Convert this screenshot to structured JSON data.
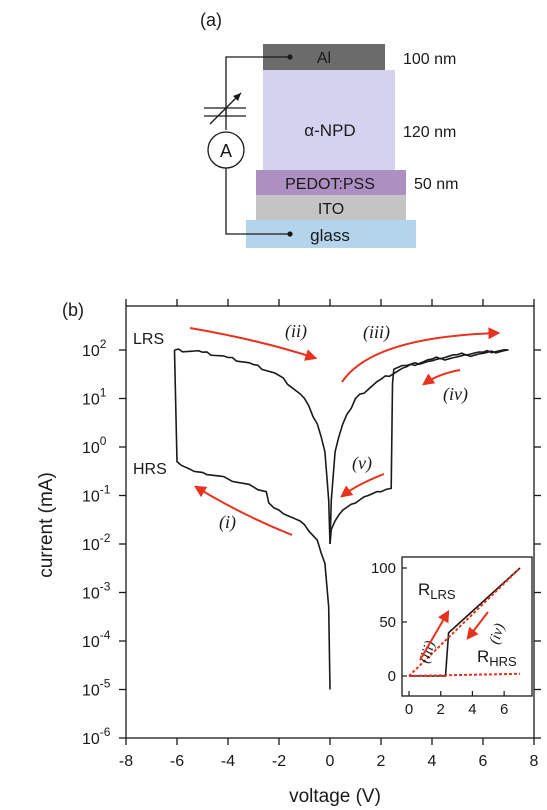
{
  "panel_a": {
    "label": "(a)",
    "layers": [
      {
        "name": "Al",
        "thickness": "100 nm",
        "color": "#6b6b6b"
      },
      {
        "name": "α-NPD",
        "thickness": "120 nm",
        "color": "#d4d2ee"
      },
      {
        "name": "PEDOT:PSS",
        "thickness": "50 nm",
        "color": "#ad8fc2"
      },
      {
        "name": "ITO",
        "thickness": "",
        "color": "#c4c4c4"
      },
      {
        "name": "glass",
        "thickness": "",
        "color": "#b3d4ea"
      }
    ],
    "ammeter_label": "A"
  },
  "panel_b": {
    "label": "(b)",
    "ylabel": "current (mA)",
    "xlabel": "voltage (V)",
    "x_ticks": [
      "-8",
      "-6",
      "-4",
      "-2",
      "0",
      "2",
      "4",
      "6",
      "8"
    ],
    "y_ticks": [
      {
        "base": "10",
        "exp": "2"
      },
      {
        "base": "10",
        "exp": "1"
      },
      {
        "base": "10",
        "exp": "0"
      },
      {
        "base": "10",
        "exp": "-1"
      },
      {
        "base": "10",
        "exp": "-2"
      },
      {
        "base": "10",
        "exp": "-3"
      },
      {
        "base": "10",
        "exp": "-4"
      },
      {
        "base": "10",
        "exp": "-5"
      },
      {
        "base": "10",
        "exp": "-6"
      }
    ],
    "state_labels": {
      "lrs": "LRS",
      "hrs": "HRS"
    },
    "arrow_labels": [
      "(i)",
      "(ii)",
      "(iii)",
      "(iv)",
      "(v)"
    ],
    "arrow_color": "#e8321e",
    "inset": {
      "x_ticks": [
        "0",
        "2",
        "4",
        "6"
      ],
      "y_ticks": [
        "0",
        "50",
        "100"
      ],
      "labels": {
        "r_lrs": {
          "main": "R",
          "sub": "LRS"
        },
        "r_hrs": {
          "main": "R",
          "sub": "HRS"
        },
        "iii": "(iii)",
        "iv": "(iv)"
      }
    }
  },
  "chart_data": {
    "type": "line",
    "xlabel": "voltage (V)",
    "ylabel": "current (mA)",
    "xlim": [
      -8,
      8
    ],
    "ylim": [
      1e-06,
      1000
    ],
    "y_scale": "log",
    "grid": false,
    "series": [
      {
        "x": [
          -6.1,
          -6.0,
          -5.5,
          -5,
          -4,
          -3,
          -2.5,
          -2.4,
          -2,
          -1,
          -0.5,
          -0.2,
          -0.05,
          0.0
        ],
        "y": [
          100,
          0.5,
          0.35,
          0.3,
          0.22,
          0.15,
          0.12,
          0.07,
          0.05,
          0.025,
          0.012,
          0.004,
          0.0005,
          1e-05
        ]
      },
      {
        "x": [
          -6.1,
          -5,
          -4,
          -3,
          -2,
          -1,
          -0.5,
          -0.2,
          -0.05,
          0.0,
          0.05,
          0.2,
          0.5,
          1,
          2,
          3,
          4,
          5,
          6,
          7
        ],
        "y": [
          100,
          90,
          70,
          50,
          30,
          10,
          3,
          0.8,
          0.08,
          0.01,
          0.08,
          0.8,
          3,
          10,
          25,
          45,
          65,
          80,
          90,
          100
        ]
      },
      {
        "x": [
          0.0,
          0.05,
          0.2,
          0.5,
          1.0,
          1.5,
          2.0,
          2.4,
          2.45,
          2.5,
          3,
          4,
          5,
          6,
          7
        ],
        "y": [
          0.01,
          0.02,
          0.03,
          0.05,
          0.07,
          0.1,
          0.12,
          0.14,
          20,
          40,
          48,
          60,
          72,
          85,
          100
        ]
      }
    ],
    "inset": {
      "type": "line",
      "xlim": [
        0,
        7
      ],
      "ylim": [
        -10,
        110
      ],
      "series": [
        {
          "x": [
            0,
            2.3,
            2.5,
            7
          ],
          "y": [
            0,
            0,
            40,
            100
          ]
        },
        {
          "x": [
            0,
            7
          ],
          "y": [
            0,
            100
          ]
        },
        {
          "x": [
            0,
            7
          ],
          "y": [
            0,
            2
          ]
        }
      ]
    }
  }
}
